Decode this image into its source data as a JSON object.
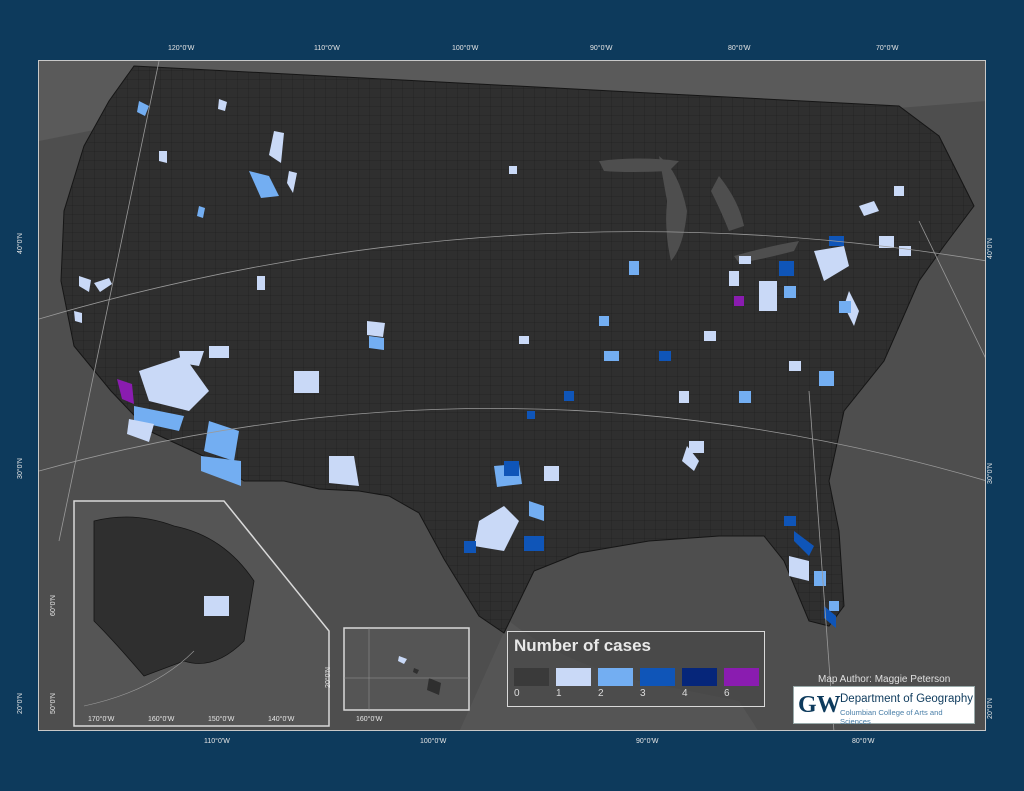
{
  "graticule_top": [
    "120°0'W",
    "110°0'W",
    "100°0'W",
    "90°0'W",
    "80°0'W",
    "70°0'W"
  ],
  "graticule_bottom": [
    "110°0'W",
    "100°0'W",
    "90°0'W",
    "80°0'W"
  ],
  "graticule_left": [
    "40°0'N",
    "30°0'N",
    "20°0'N"
  ],
  "graticule_right": [
    "40°0'N",
    "30°0'N",
    "20°0'N"
  ],
  "alaska_inset": {
    "lon": [
      "170°0'W",
      "160°0'W",
      "150°0'W",
      "140°0'W"
    ],
    "lat": [
      "60°0'N",
      "50°0'N"
    ]
  },
  "hawaii_inset": {
    "lon": [
      "160°0'W"
    ],
    "lat": [
      "20°0'N"
    ]
  },
  "legend": {
    "title": "Number of cases",
    "classes": [
      {
        "label": "0",
        "color": "#3a3a3a"
      },
      {
        "label": "1",
        "color": "#c9d9f7"
      },
      {
        "label": "2",
        "color": "#73aef2"
      },
      {
        "label": "3",
        "color": "#0f55b8"
      },
      {
        "label": "4",
        "color": "#06267a"
      },
      {
        "label": "6",
        "color": "#8a1cb0"
      }
    ]
  },
  "author": "Map Author: Maggie Peterson",
  "logo": {
    "mark": "GW",
    "line1": "Department of Geography",
    "line2": "Columbian College of Arts and Sciences"
  }
}
